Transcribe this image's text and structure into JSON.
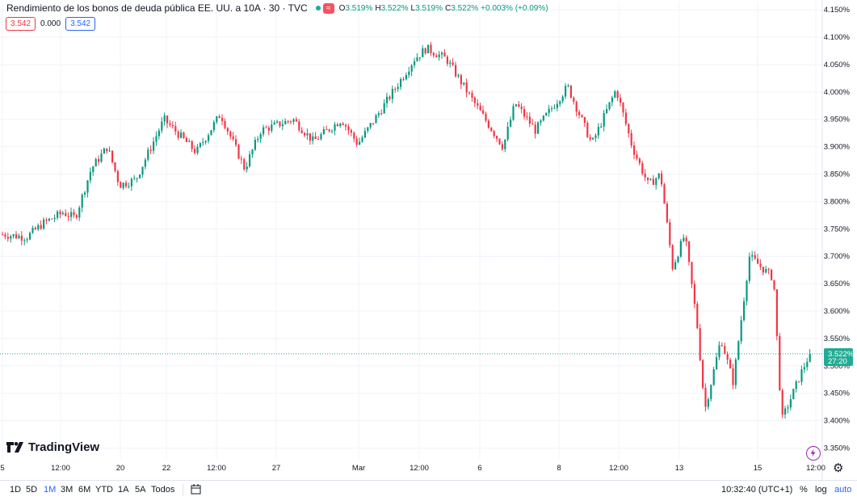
{
  "header": {
    "title": "Rendimiento de los bonos de deuda pública EE. UU. a 10A · 30 · TVC",
    "badge_icon": "wave-icon",
    "ohlc": {
      "o_label": "O",
      "o": "3.519%",
      "h_label": "H",
      "h": "3.522%",
      "l_label": "L",
      "l": "3.519%",
      "c_label": "C",
      "c": "3.522%",
      "change": "+0.003% (+0.09%)"
    },
    "sell": "3.542",
    "spread": "0.000",
    "buy": "3.542"
  },
  "logo": {
    "text": "TradingView"
  },
  "price_label": {
    "value": "3.522%",
    "countdown": "27:20"
  },
  "bottom": {
    "timeframes": [
      "1D",
      "5D",
      "1M",
      "3M",
      "6M",
      "YTD",
      "1A",
      "5A",
      "Todos"
    ],
    "active": "1M",
    "time": "10:32:40 (UTC+1)",
    "percent": "%",
    "log": "log",
    "auto": "auto"
  },
  "colors": {
    "up": "#089981",
    "down": "#f23645",
    "accent": "#2962ff"
  },
  "chart_data": {
    "type": "candlestick",
    "title": "Rendimiento de los bonos de deuda pública EE. UU. a 10A · 30 · TVC",
    "y_axis": {
      "ticks": [
        "4.150%",
        "4.100%",
        "4.050%",
        "4.000%",
        "3.950%",
        "3.900%",
        "3.850%",
        "3.800%",
        "3.750%",
        "3.700%",
        "3.650%",
        "3.600%",
        "3.550%",
        "3.500%",
        "3.450%",
        "3.400%",
        "3.350%"
      ],
      "range": [
        3.33,
        4.165
      ]
    },
    "x_axis": {
      "ticks": [
        "5",
        "12:00",
        "20",
        "22",
        "12:00",
        "27",
        "Mar",
        "12:00",
        "6",
        "8",
        "12:00",
        "13",
        "15",
        "12:00"
      ]
    },
    "grid": true,
    "current": 3.522,
    "path": [
      [
        0,
        3.74
      ],
      [
        0.03,
        3.735
      ],
      [
        0.05,
        3.76
      ],
      [
        0.075,
        3.78
      ],
      [
        0.09,
        3.77
      ],
      [
        0.11,
        3.86
      ],
      [
        0.13,
        3.9
      ],
      [
        0.145,
        3.83
      ],
      [
        0.165,
        3.84
      ],
      [
        0.2,
        3.95
      ],
      [
        0.24,
        3.89
      ],
      [
        0.27,
        3.96
      ],
      [
        0.3,
        3.86
      ],
      [
        0.32,
        3.93
      ],
      [
        0.36,
        3.95
      ],
      [
        0.385,
        3.91
      ],
      [
        0.42,
        3.95
      ],
      [
        0.44,
        3.905
      ],
      [
        0.47,
        3.97
      ],
      [
        0.51,
        4.06
      ],
      [
        0.525,
        4.08
      ],
      [
        0.55,
        4.06
      ],
      [
        0.58,
        3.99
      ],
      [
        0.62,
        3.9
      ],
      [
        0.635,
        3.98
      ],
      [
        0.66,
        3.93
      ],
      [
        0.7,
        4.01
      ],
      [
        0.73,
        3.905
      ],
      [
        0.76,
        4.005
      ],
      [
        0.78,
        3.9
      ],
      [
        0.8,
        3.83
      ],
      [
        0.815,
        3.85
      ],
      [
        0.83,
        3.68
      ],
      [
        0.845,
        3.74
      ],
      [
        0.86,
        3.58
      ],
      [
        0.87,
        3.42
      ],
      [
        0.89,
        3.55
      ],
      [
        0.905,
        3.47
      ],
      [
        0.925,
        3.7
      ],
      [
        0.955,
        3.66
      ],
      [
        0.965,
        3.4
      ],
      [
        0.99,
        3.49
      ],
      [
        1.0,
        3.522
      ]
    ]
  }
}
